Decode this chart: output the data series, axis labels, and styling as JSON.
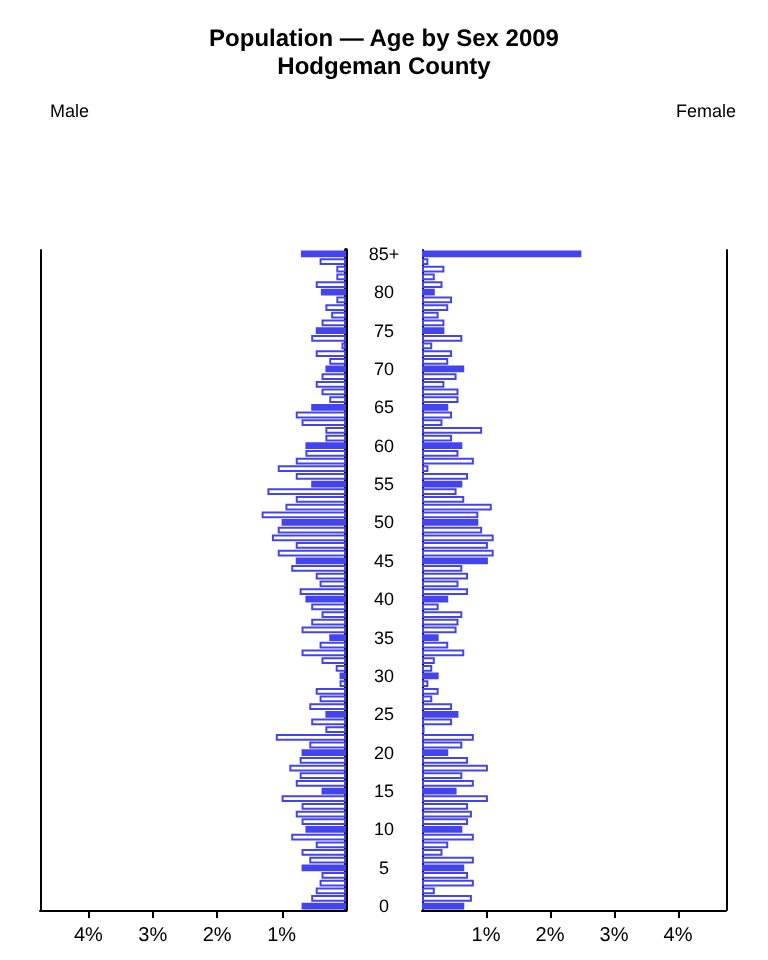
{
  "chart_data": [
    {
      "type": "bar",
      "title": "Population — Age by Sex 2009",
      "subtitle": "Hodgeman County",
      "ylabel": "Male",
      "orientation": "horizontal",
      "categories": [
        null,
        null,
        null,
        null,
        null,
        null,
        null,
        null,
        null,
        null,
        null,
        null,
        null,
        null,
        null,
        null,
        null,
        null,
        null,
        null,
        null,
        null,
        null,
        null,
        null,
        null,
        null,
        null,
        null,
        null,
        null,
        null,
        null,
        null,
        null,
        null,
        null,
        null,
        null,
        null,
        null,
        null,
        null,
        null,
        null,
        null,
        null,
        null,
        null,
        null,
        null,
        null,
        null,
        null,
        null,
        null,
        null,
        null,
        null,
        null,
        null,
        null,
        null,
        null,
        null,
        null,
        null,
        null,
        null,
        null,
        null,
        null,
        null,
        null,
        null,
        null,
        null,
        null,
        null,
        null,
        null,
        null,
        null,
        null,
        null,
        null
      ],
      "xlim": [
        4.75,
        0
      ],
      "xticks": [
        {
          "value": 4,
          "label": "4%"
        },
        {
          "value": 3,
          "label": "3%"
        },
        {
          "value": 2,
          "label": "2%"
        },
        {
          "value": 1,
          "label": "1%"
        }
      ],
      "color": "#4444ee",
      "values": [
        0.7,
        0.41,
        0.15,
        0.15,
        0.47,
        0.39,
        0.15,
        0.32,
        0.23,
        0.38,
        0.47,
        0.54,
        0.07,
        0.47,
        0.26,
        0.32,
        0.38,
        0.47,
        0.38,
        0.26,
        0.54,
        0.78,
        0.69,
        0.32,
        0.32,
        0.63,
        0.63,
        0.78,
        1.06,
        0.78,
        0.54,
        1.22,
        0.78,
        0.94,
        1.31,
        1.0,
        1.06,
        1.15,
        0.78,
        1.06,
        0.78,
        0.85,
        0.47,
        0.41,
        0.72,
        0.63,
        0.54,
        0.38,
        0.54,
        0.69,
        0.26,
        0.41,
        0.69,
        0.38,
        0.16,
        0.1,
        0.1,
        0.47,
        0.41,
        0.57,
        0.32,
        0.54,
        0.32,
        1.09,
        0.57,
        0.69,
        0.72,
        0.88,
        0.72,
        0.78,
        0.38,
        1.0,
        0.69,
        0.78,
        0.69,
        0.63,
        0.85,
        0.47,
        0.69,
        0.57,
        0.69,
        0.38,
        0.41,
        0.47,
        0.54,
        0.69
      ],
      "colors": [
        "#4444ee",
        "#ffffff",
        "#ffffff",
        "#ffffff",
        "#ffffff",
        "#4444ee",
        "#ffffff",
        "#ffffff",
        "#ffffff",
        "#ffffff",
        "#4444ee",
        "#ffffff",
        "#ffffff",
        "#ffffff",
        "#ffffff",
        "#4444ee",
        "#ffffff",
        "#ffffff",
        "#ffffff",
        "#ffffff",
        "#4444ee",
        "#ffffff",
        "#ffffff",
        "#ffffff",
        "#ffffff",
        "#4444ee",
        "#ffffff",
        "#ffffff",
        "#ffffff",
        "#ffffff",
        "#4444ee",
        "#ffffff",
        "#ffffff",
        "#ffffff",
        "#ffffff",
        "#4444ee",
        "#ffffff",
        "#ffffff",
        "#ffffff",
        "#ffffff",
        "#4444ee",
        "#ffffff",
        "#ffffff",
        "#ffffff",
        "#ffffff",
        "#4444ee",
        "#ffffff",
        "#ffffff",
        "#ffffff",
        "#ffffff",
        "#4444ee",
        "#ffffff",
        "#ffffff",
        "#ffffff",
        "#ffffff",
        "#4444ee",
        "#ffffff",
        "#ffffff",
        "#ffffff",
        "#ffffff",
        "#4444ee",
        "#ffffff",
        "#ffffff",
        "#ffffff",
        "#ffffff",
        "#4444ee",
        "#ffffff",
        "#ffffff",
        "#ffffff",
        "#ffffff",
        "#4444ee",
        "#ffffff",
        "#ffffff",
        "#ffffff",
        "#ffffff",
        "#4444ee",
        "#ffffff",
        "#ffffff",
        "#ffffff",
        "#ffffff",
        "#4444ee",
        "#ffffff",
        "#ffffff",
        "#ffffff",
        "#ffffff",
        "#4444ee"
      ]
    },
    {
      "type": "bar",
      "ylabel": "Female",
      "orientation": "horizontal",
      "categories": [
        "85+",
        null,
        null,
        null,
        null,
        "80",
        null,
        null,
        null,
        null,
        "75",
        null,
        null,
        null,
        null,
        "70",
        null,
        null,
        null,
        null,
        "65",
        null,
        null,
        null,
        null,
        "60",
        null,
        null,
        null,
        null,
        "55",
        null,
        null,
        null,
        null,
        "50",
        null,
        null,
        null,
        null,
        "45",
        null,
        null,
        null,
        null,
        "40",
        null,
        null,
        null,
        null,
        "35",
        null,
        null,
        null,
        null,
        "30",
        null,
        null,
        null,
        null,
        "25",
        null,
        null,
        null,
        null,
        "20",
        null,
        null,
        null,
        null,
        "15",
        null,
        null,
        null,
        null,
        "10",
        null,
        null,
        null,
        null,
        "5",
        null,
        null,
        null,
        null,
        "0"
      ],
      "xlim": [
        0,
        4.75
      ],
      "xticks": [
        {
          "value": 1,
          "label": "1%"
        },
        {
          "value": 2,
          "label": "2%"
        },
        {
          "value": 3,
          "label": "3%"
        },
        {
          "value": 4,
          "label": "4%"
        }
      ],
      "color": "#4444ee",
      "values": [
        2.49,
        0.1,
        0.35,
        0.2,
        0.32,
        0.2,
        0.47,
        0.41,
        0.26,
        0.35,
        0.35,
        0.63,
        0.16,
        0.47,
        0.41,
        0.66,
        0.54,
        0.35,
        0.57,
        0.57,
        0.41,
        0.47,
        0.32,
        0.94,
        0.47,
        0.63,
        0.57,
        0.81,
        0.1,
        0.72,
        0.63,
        0.54,
        0.66,
        1.09,
        0.88,
        0.88,
        0.94,
        1.12,
        1.03,
        1.12,
        1.03,
        0.63,
        0.72,
        0.57,
        0.72,
        0.41,
        0.26,
        0.63,
        0.57,
        0.54,
        0.26,
        0.41,
        0.66,
        0.2,
        0.16,
        0.26,
        0.1,
        0.26,
        0.16,
        0.47,
        0.57,
        0.47,
        0.04,
        0.81,
        0.63,
        0.41,
        0.72,
        1.03,
        0.63,
        0.81,
        0.54,
        1.03,
        0.72,
        0.78,
        0.72,
        0.63,
        0.81,
        0.41,
        0.32,
        0.81,
        0.66,
        0.72,
        0.81,
        0.2,
        0.78,
        0.66
      ],
      "colors": [
        "#4444ee",
        "#ffffff",
        "#ffffff",
        "#ffffff",
        "#ffffff",
        "#4444ee",
        "#ffffff",
        "#ffffff",
        "#ffffff",
        "#ffffff",
        "#4444ee",
        "#ffffff",
        "#ffffff",
        "#ffffff",
        "#ffffff",
        "#4444ee",
        "#ffffff",
        "#ffffff",
        "#ffffff",
        "#ffffff",
        "#4444ee",
        "#ffffff",
        "#ffffff",
        "#ffffff",
        "#ffffff",
        "#4444ee",
        "#ffffff",
        "#ffffff",
        "#ffffff",
        "#ffffff",
        "#4444ee",
        "#ffffff",
        "#ffffff",
        "#ffffff",
        "#ffffff",
        "#4444ee",
        "#ffffff",
        "#ffffff",
        "#ffffff",
        "#ffffff",
        "#4444ee",
        "#ffffff",
        "#ffffff",
        "#ffffff",
        "#ffffff",
        "#4444ee",
        "#ffffff",
        "#ffffff",
        "#ffffff",
        "#ffffff",
        "#4444ee",
        "#ffffff",
        "#ffffff",
        "#ffffff",
        "#ffffff",
        "#4444ee",
        "#ffffff",
        "#ffffff",
        "#ffffff",
        "#ffffff",
        "#4444ee",
        "#ffffff",
        "#ffffff",
        "#ffffff",
        "#ffffff",
        "#4444ee",
        "#ffffff",
        "#ffffff",
        "#ffffff",
        "#ffffff",
        "#4444ee",
        "#ffffff",
        "#ffffff",
        "#ffffff",
        "#ffffff",
        "#4444ee",
        "#ffffff",
        "#ffffff",
        "#ffffff",
        "#ffffff",
        "#4444ee",
        "#ffffff",
        "#ffffff",
        "#ffffff",
        "#ffffff",
        "#4444ee"
      ]
    }
  ]
}
